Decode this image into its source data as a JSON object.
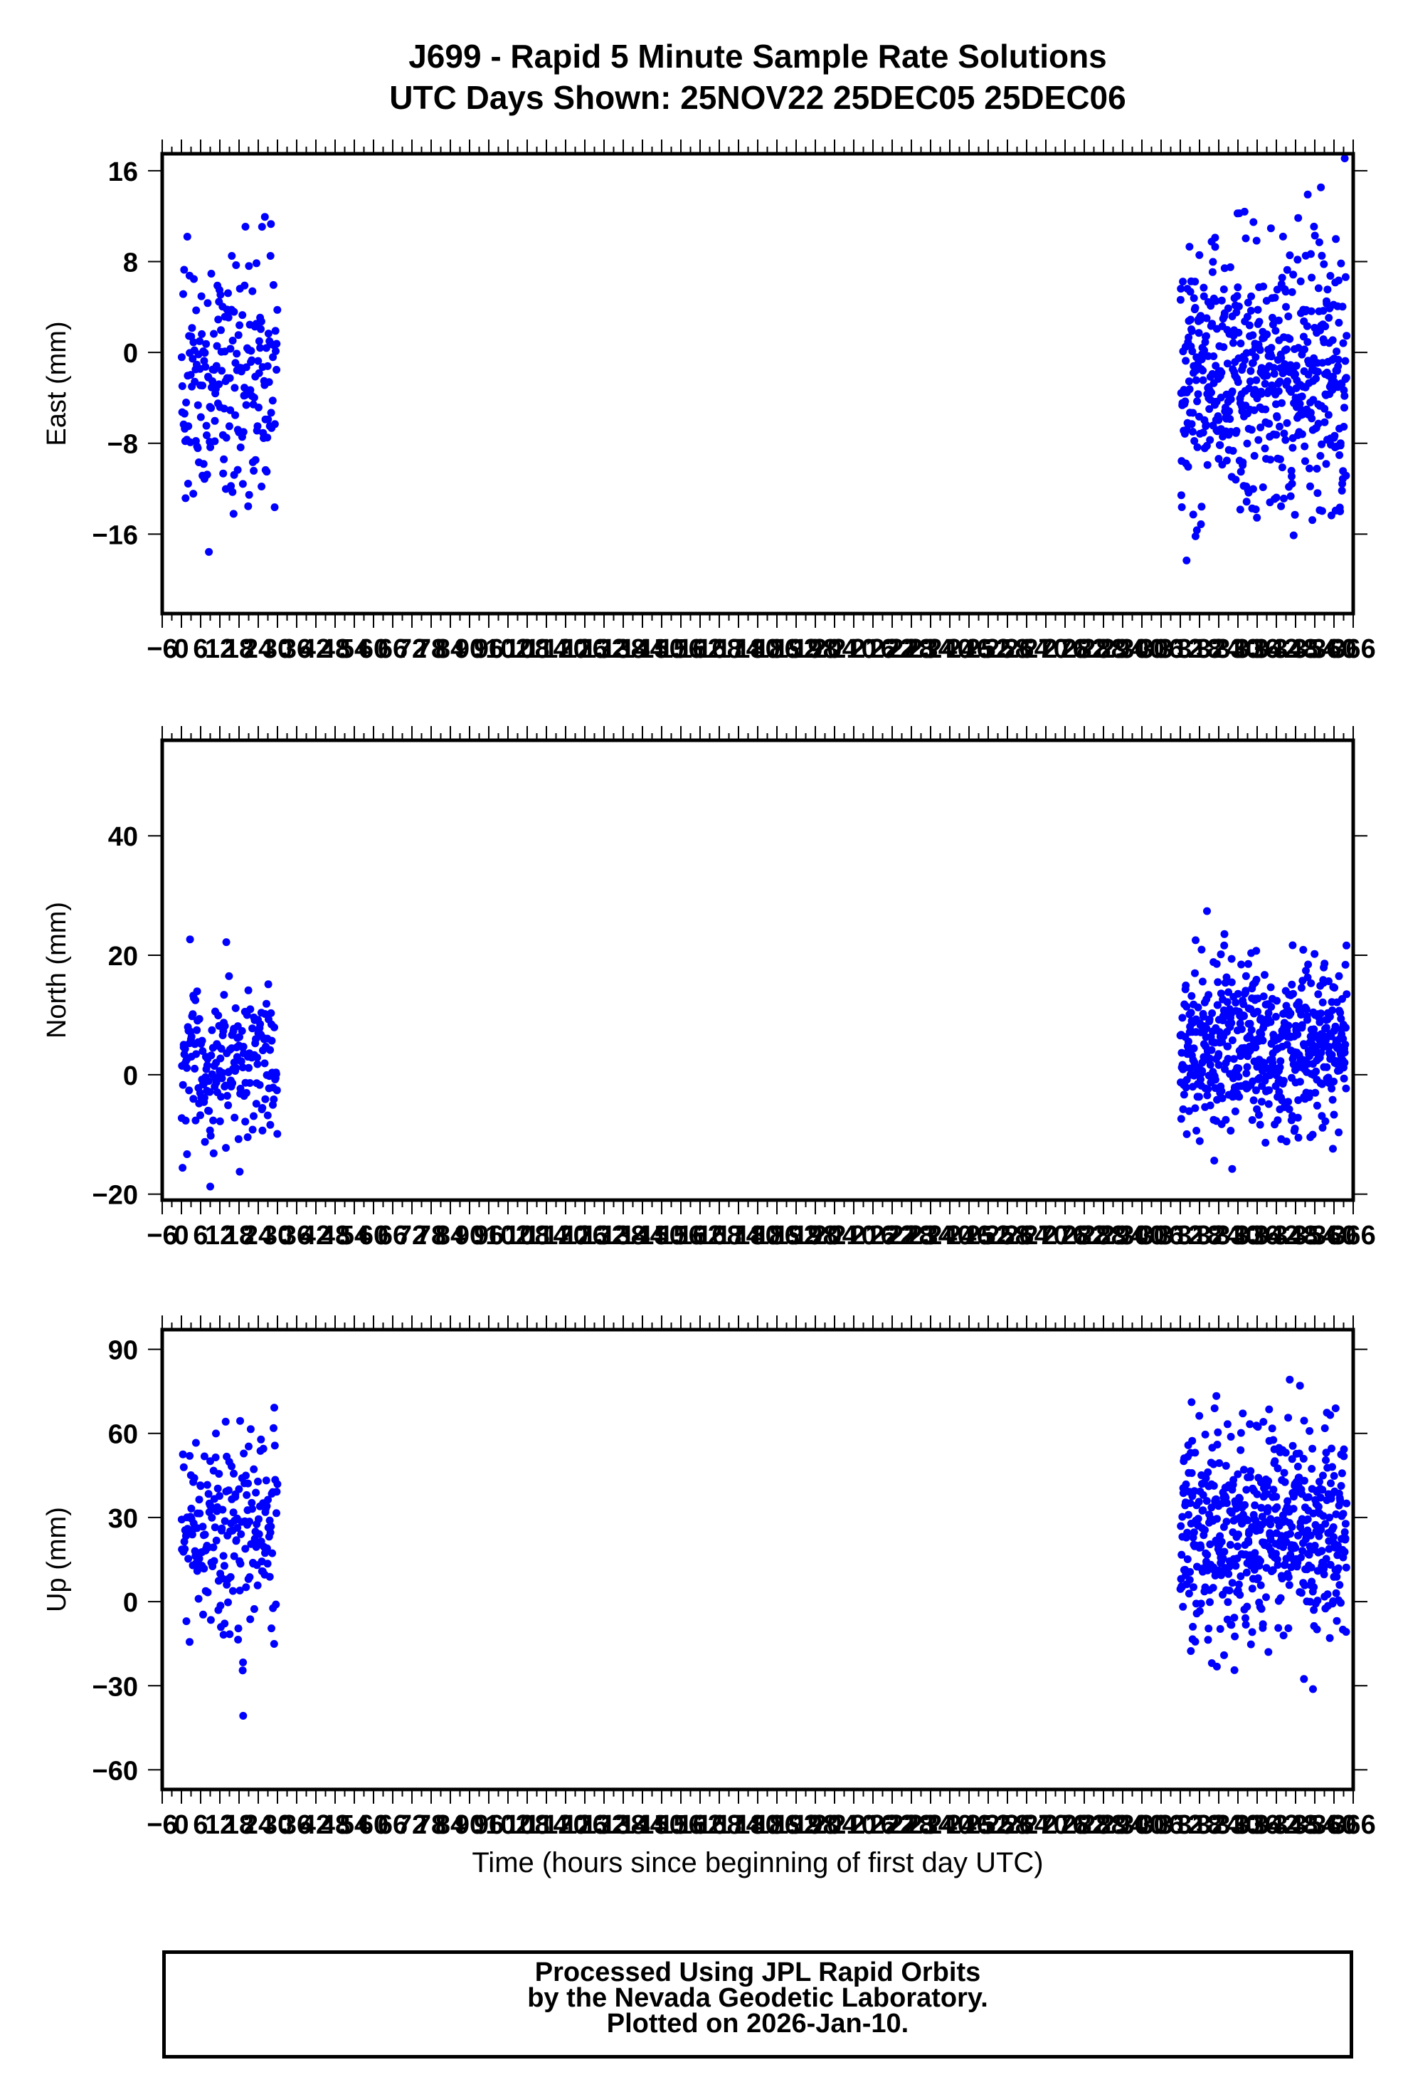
{
  "title": {
    "line1": "J699 - Rapid 5 Minute Sample Rate Solutions",
    "line2": "UTC Days Shown:  25NOV22 25DEC05 25DEC06"
  },
  "xlabel": "Time (hours since beginning of first day UTC)",
  "footer": {
    "line1": "Processed Using JPL Rapid Orbits",
    "line2": "by the Nevada Geodetic Laboratory.",
    "line3": "Plotted on 2026-Jan-10."
  },
  "colors": {
    "points": "#0000ff",
    "axes": "#000000"
  },
  "chart_data": [
    {
      "type": "scatter",
      "ylabel": "East (mm)",
      "xlim": [
        -6,
        366
      ],
      "ylim": [
        -23,
        17.5
      ],
      "yticks": [
        16,
        8,
        0,
        -8,
        -16
      ],
      "ytick_labels": [
        "16",
        "8",
        "0",
        "−8",
        "−16"
      ],
      "xticks": [
        -6,
        0,
        6,
        12,
        18,
        24,
        30,
        36,
        42,
        48,
        54,
        60,
        66,
        72,
        78,
        84,
        90,
        96,
        102,
        108,
        114,
        120,
        126,
        132,
        138,
        144,
        150,
        156,
        162,
        168,
        174,
        180,
        186,
        192,
        198,
        204,
        210,
        216,
        222,
        228,
        234,
        240,
        246,
        252,
        258,
        264,
        270,
        276,
        282,
        288,
        294,
        300,
        306,
        312,
        318,
        324,
        330,
        336,
        342,
        348,
        354,
        360,
        366
      ],
      "clusters": [
        {
          "x_range": [
            0,
            30
          ],
          "y_center": -2.5,
          "y_spread": 5.8,
          "count": 210
        },
        {
          "x_range": [
            312,
            364
          ],
          "y_center": -2.0,
          "y_spread": 6.0,
          "count": 560
        }
      ]
    },
    {
      "type": "scatter",
      "ylabel": "North (mm)",
      "xlim": [
        -6,
        366
      ],
      "ylim": [
        -21,
        56
      ],
      "yticks": [
        40,
        20,
        0,
        -20
      ],
      "ytick_labels": [
        "40",
        "20",
        "0",
        "−20"
      ],
      "xticks": [
        -6,
        0,
        6,
        12,
        18,
        24,
        30,
        36,
        42,
        48,
        54,
        60,
        66,
        72,
        78,
        84,
        90,
        96,
        102,
        108,
        114,
        120,
        126,
        132,
        138,
        144,
        150,
        156,
        162,
        168,
        174,
        180,
        186,
        192,
        198,
        204,
        210,
        216,
        222,
        228,
        234,
        240,
        246,
        252,
        258,
        264,
        270,
        276,
        282,
        288,
        294,
        300,
        306,
        312,
        318,
        324,
        330,
        336,
        342,
        348,
        354,
        360,
        366
      ],
      "clusters": [
        {
          "x_range": [
            0,
            30
          ],
          "y_center": 1.0,
          "y_spread": 7.0,
          "count": 210
        },
        {
          "x_range": [
            312,
            364
          ],
          "y_center": 5.0,
          "y_spread": 7.0,
          "count": 560
        }
      ]
    },
    {
      "type": "scatter",
      "ylabel": "Up (mm)",
      "xlim": [
        -6,
        366
      ],
      "ylim": [
        -67,
        97
      ],
      "yticks": [
        90,
        60,
        30,
        0,
        -30,
        -60
      ],
      "ytick_labels": [
        "90",
        "60",
        "30",
        "0",
        "−30",
        "−60"
      ],
      "xticks": [
        -6,
        0,
        6,
        12,
        18,
        24,
        30,
        36,
        42,
        48,
        54,
        60,
        66,
        72,
        78,
        84,
        90,
        96,
        102,
        108,
        114,
        120,
        126,
        132,
        138,
        144,
        150,
        156,
        162,
        168,
        174,
        180,
        186,
        192,
        198,
        204,
        210,
        216,
        222,
        228,
        234,
        240,
        246,
        252,
        258,
        264,
        270,
        276,
        282,
        288,
        294,
        300,
        306,
        312,
        318,
        324,
        330,
        336,
        342,
        348,
        354,
        360,
        366
      ],
      "clusters": [
        {
          "x_range": [
            0,
            30
          ],
          "y_center": 25,
          "y_spread": 18,
          "count": 210
        },
        {
          "x_range": [
            312,
            364
          ],
          "y_center": 25,
          "y_spread": 20,
          "count": 560
        }
      ]
    }
  ]
}
